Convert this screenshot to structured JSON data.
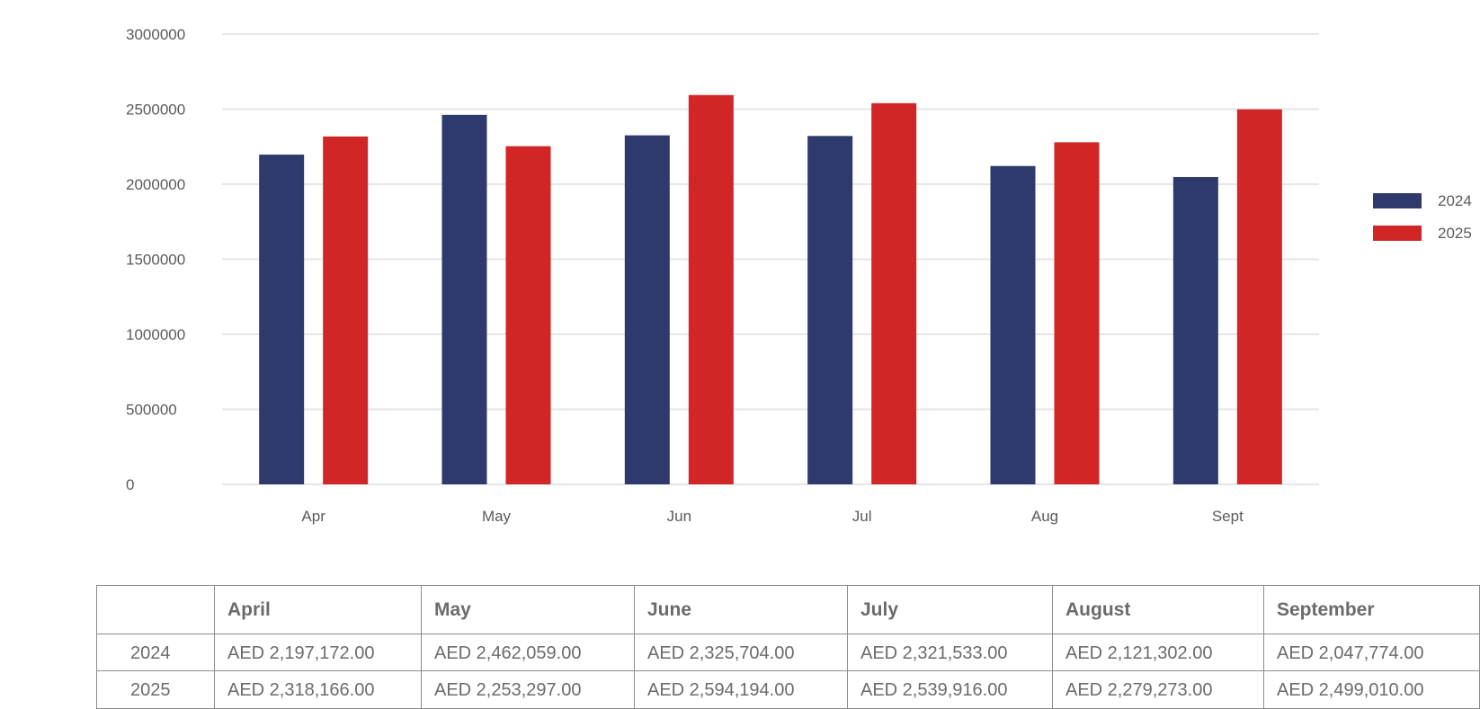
{
  "colors": {
    "series_2024": "#2e3a6b",
    "series_2025": "#d22626",
    "grid": "#e6e6e6",
    "text": "#5a5a5a"
  },
  "chart_data": {
    "type": "bar",
    "categories": [
      "Apr",
      "May",
      "Jun",
      "Jul",
      "Aug",
      "Sept"
    ],
    "series": [
      {
        "name": "2024",
        "values": [
          2197172,
          2462059,
          2325704,
          2321533,
          2121302,
          2047774
        ]
      },
      {
        "name": "2025",
        "values": [
          2318166,
          2253297,
          2594194,
          2539916,
          2279273,
          2499010
        ]
      }
    ],
    "yticks": [
      "0",
      "500000",
      "1000000",
      "1500000",
      "2000000",
      "2500000",
      "3000000"
    ],
    "ylim": [
      0,
      3000000
    ],
    "grid": true,
    "legend": "right"
  },
  "table": {
    "headers": [
      "",
      "April",
      "May",
      "June",
      "July",
      "August",
      "September"
    ],
    "rows": [
      {
        "label": "2024",
        "cells": [
          "AED 2,197,172.00",
          "AED 2,462,059.00",
          "AED 2,325,704.00",
          "AED 2,321,533.00",
          "AED 2,121,302.00",
          "AED 2,047,774.00"
        ]
      },
      {
        "label": "2025",
        "cells": [
          "AED 2,318,166.00",
          "AED 2,253,297.00",
          "AED 2,594,194.00",
          "AED 2,539,916.00",
          "AED 2,279,273.00",
          "AED 2,499,010.00"
        ]
      }
    ]
  }
}
